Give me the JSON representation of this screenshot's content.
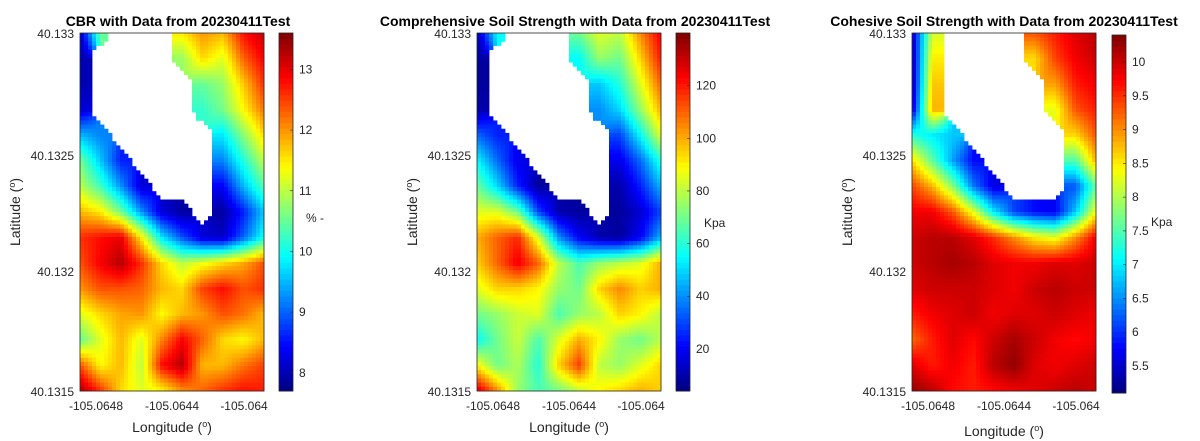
{
  "chart_data": [
    {
      "type": "heatmap",
      "title": "CBR with Data from 20230411Test",
      "xlabel": "Longitude (",
      "xlabel_sup": "o",
      "xlabel_end": ")",
      "ylabel": "Latitude (",
      "ylabel_sup": "o",
      "ylabel_end": ")",
      "x_ticks": [
        "-105.0648",
        "-105.0644",
        "-105.064"
      ],
      "y_ticks": [
        "40.133",
        "40.1325",
        "40.132",
        "40.1315"
      ],
      "colorbar": {
        "label": "% -",
        "min": 7.7,
        "max": 13.6,
        "ticks": [
          "8",
          "9",
          "10",
          "11",
          "12",
          "13"
        ],
        "tick_values": [
          8,
          9,
          10,
          11,
          12,
          13
        ]
      },
      "colormap": "jet",
      "field": {
        "description": "surface values in colorbar units over the grid, rows top to bottom",
        "rows": [
          [
            8.0,
            10.5,
            null,
            null,
            null,
            11.5,
            12.0,
            11.8,
            12.8,
            13.2
          ],
          [
            8.0,
            null,
            null,
            null,
            null,
            10.8,
            11.6,
            11.2,
            12.3,
            12.9
          ],
          [
            8.0,
            null,
            null,
            null,
            null,
            null,
            10.5,
            10.8,
            11.7,
            12.6
          ],
          [
            8.2,
            null,
            null,
            null,
            null,
            null,
            10.2,
            10.6,
            11.4,
            12.2
          ],
          [
            9.5,
            9.2,
            null,
            null,
            null,
            null,
            null,
            9.8,
            10.7,
            11.6
          ],
          [
            10.6,
            9.6,
            8.6,
            null,
            null,
            null,
            null,
            9.2,
            10.1,
            11.0
          ],
          [
            11.0,
            10.3,
            9.3,
            8.2,
            null,
            null,
            null,
            8.4,
            9.5,
            10.4
          ],
          [
            11.8,
            11.5,
            10.6,
            9.3,
            8.2,
            7.9,
            null,
            7.9,
            8.6,
            9.6
          ],
          [
            12.6,
            12.8,
            13.0,
            11.5,
            9.8,
            8.9,
            8.2,
            8.1,
            9.0,
            10.0
          ],
          [
            12.4,
            12.9,
            13.3,
            12.6,
            11.6,
            11.0,
            11.3,
            11.6,
            11.9,
            12.4
          ],
          [
            12.0,
            12.4,
            12.4,
            12.3,
            11.8,
            11.6,
            12.5,
            12.8,
            12.4,
            12.6
          ],
          [
            11.2,
            11.6,
            11.9,
            12.0,
            11.4,
            11.8,
            12.0,
            12.4,
            12.2,
            11.8
          ],
          [
            10.5,
            11.2,
            11.8,
            11.2,
            12.1,
            12.9,
            12.3,
            11.6,
            11.4,
            11.8
          ],
          [
            12.4,
            11.4,
            11.8,
            11.0,
            12.8,
            13.3,
            11.8,
            11.8,
            12.2,
            12.5
          ],
          [
            13.4,
            12.6,
            11.6,
            11.2,
            11.4,
            12.0,
            12.3,
            12.6,
            12.8,
            12.7
          ]
        ]
      }
    },
    {
      "type": "heatmap",
      "title": "Comprehensive Soil Strength with Data from 20230411Test",
      "xlabel": "Longitude (",
      "xlabel_sup": "o",
      "xlabel_end": ")",
      "ylabel": "Latitude (",
      "ylabel_sup": "o",
      "ylabel_end": ")",
      "x_ticks": [
        "-105.0648",
        "-105.0644",
        "-105.064"
      ],
      "y_ticks": [
        "40.133",
        "40.1325",
        "40.132",
        "40.1315"
      ],
      "colorbar": {
        "label": "Kpa",
        "min": 4,
        "max": 140,
        "ticks": [
          "20",
          "40",
          "60",
          "80",
          "100",
          "120"
        ],
        "tick_values": [
          20,
          40,
          60,
          80,
          100,
          120
        ]
      },
      "colormap": "jet",
      "field": {
        "description": "surface values in colorbar units over the grid, rows top to bottom",
        "rows": [
          [
            10,
            55,
            null,
            null,
            null,
            70,
            85,
            80,
            105,
            125
          ],
          [
            8,
            null,
            null,
            null,
            null,
            55,
            75,
            70,
            95,
            120
          ],
          [
            8,
            null,
            null,
            null,
            null,
            null,
            48,
            60,
            85,
            110
          ],
          [
            10,
            null,
            null,
            null,
            null,
            null,
            40,
            50,
            75,
            100
          ],
          [
            35,
            25,
            null,
            null,
            null,
            null,
            null,
            30,
            55,
            85
          ],
          [
            55,
            35,
            18,
            null,
            null,
            null,
            null,
            18,
            35,
            60
          ],
          [
            70,
            50,
            25,
            8,
            null,
            null,
            null,
            10,
            25,
            45
          ],
          [
            85,
            85,
            70,
            30,
            10,
            8,
            null,
            8,
            15,
            30
          ],
          [
            100,
            110,
            118,
            85,
            40,
            20,
            10,
            8,
            20,
            45
          ],
          [
            95,
            110,
            125,
            110,
            80,
            65,
            75,
            80,
            85,
            100
          ],
          [
            85,
            95,
            95,
            90,
            75,
            70,
            95,
            105,
            95,
            100
          ],
          [
            70,
            75,
            82,
            85,
            65,
            75,
            80,
            95,
            90,
            80
          ],
          [
            55,
            70,
            82,
            65,
            85,
            100,
            90,
            75,
            70,
            80
          ],
          [
            90,
            70,
            78,
            60,
            95,
            115,
            80,
            75,
            85,
            95
          ],
          [
            130,
            105,
            75,
            65,
            70,
            80,
            90,
            95,
            100,
            95
          ]
        ]
      }
    },
    {
      "type": "heatmap",
      "title": "Cohesive Soil Strength with Data from 20230411Test",
      "xlabel": "Longitude (",
      "xlabel_sup": "o",
      "xlabel_end": ")",
      "ylabel": "Latitude (",
      "ylabel_sup": "o",
      "ylabel_end": ")",
      "x_ticks": [
        "-105.0648",
        "-105.0644",
        "-105.064"
      ],
      "y_ticks": [
        "40.133",
        "40.1325",
        "40.132",
        "40.1315"
      ],
      "colorbar": {
        "label": "Kpa",
        "min": 5.1,
        "max": 10.4,
        "ticks": [
          "5.5",
          "6",
          "6.5",
          "7",
          "7.5",
          "8",
          "8.5",
          "9",
          "9.5",
          "10"
        ],
        "tick_values": [
          5.5,
          6,
          6.5,
          7,
          7.5,
          8,
          8.5,
          9,
          9.5,
          10
        ]
      },
      "colormap": "jet",
      "field": {
        "description": "surface values in colorbar units over the grid, rows top to bottom",
        "rows": [
          [
            5.4,
            8.2,
            null,
            null,
            null,
            null,
            9.3,
            9.6,
            9.9,
            10.1
          ],
          [
            5.3,
            8.5,
            null,
            null,
            null,
            null,
            8.6,
            9.4,
            9.8,
            10.0
          ],
          [
            5.3,
            8.7,
            null,
            null,
            null,
            null,
            null,
            8.9,
            9.6,
            9.8
          ],
          [
            5.5,
            8.8,
            null,
            null,
            null,
            null,
            null,
            8.3,
            9.3,
            9.6
          ],
          [
            7.3,
            7.0,
            6.8,
            null,
            null,
            null,
            null,
            null,
            8.6,
            9.3
          ],
          [
            8.6,
            7.6,
            6.6,
            5.8,
            null,
            null,
            null,
            null,
            7.5,
            8.8
          ],
          [
            9.4,
            8.8,
            7.8,
            6.4,
            5.6,
            null,
            null,
            null,
            6.2,
            7.6
          ],
          [
            9.8,
            9.8,
            9.3,
            8.3,
            7.0,
            6.1,
            5.8,
            5.7,
            6.8,
            8.4
          ],
          [
            10.0,
            10.1,
            10.1,
            9.9,
            9.5,
            9.0,
            8.5,
            8.3,
            9.0,
            9.8
          ],
          [
            10.0,
            10.1,
            10.2,
            10.1,
            9.9,
            9.8,
            9.8,
            9.9,
            9.9,
            10.0
          ],
          [
            9.9,
            10.0,
            10.0,
            10.0,
            9.9,
            9.8,
            10.0,
            10.1,
            10.0,
            10.0
          ],
          [
            9.6,
            9.8,
            9.9,
            10.0,
            9.8,
            9.9,
            9.9,
            10.0,
            9.9,
            9.8
          ],
          [
            9.2,
            9.6,
            9.9,
            9.7,
            10.0,
            10.2,
            10.0,
            9.8,
            9.7,
            9.8
          ],
          [
            9.9,
            9.6,
            9.8,
            9.6,
            10.1,
            10.3,
            9.9,
            9.8,
            9.9,
            10.0
          ],
          [
            10.3,
            10.1,
            9.7,
            9.6,
            9.7,
            9.8,
            9.9,
            10.0,
            10.1,
            10.0
          ]
        ]
      }
    }
  ]
}
